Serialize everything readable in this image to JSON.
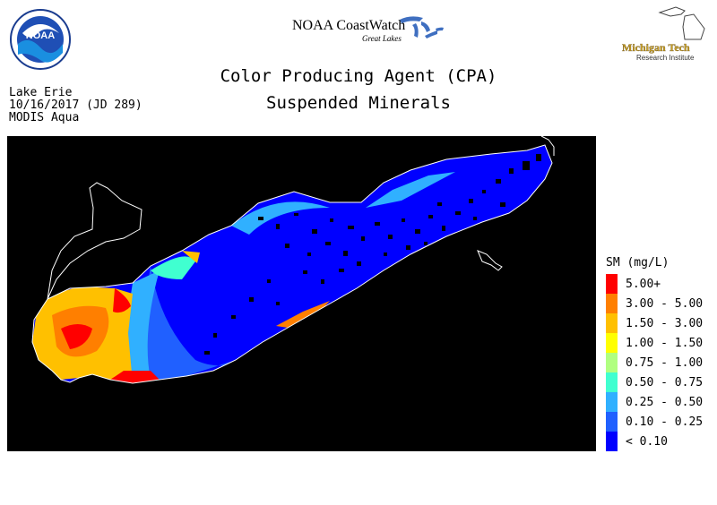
{
  "header": {
    "coastwatch_title": "NOAA CoastWatch",
    "coastwatch_subtitle": "Great Lakes",
    "noaa_logo_text": "NOAA",
    "mtu_name": "Michigan Tech",
    "mtu_subtitle": "Research Institute",
    "title_line1": "Color Producing Agent (CPA)",
    "title_line2": "Suspended Minerals"
  },
  "meta": {
    "lake": "Lake Erie",
    "date": "10/16/2017 (JD 289)",
    "sensor": "MODIS Aqua"
  },
  "legend": {
    "title": "SM (mg/L)",
    "items": [
      {
        "label": "5.00+",
        "color": "#ff0000"
      },
      {
        "label": "3.00 - 5.00",
        "color": "#ff7f00"
      },
      {
        "label": "1.50 - 3.00",
        "color": "#ffc000"
      },
      {
        "label": "1.00 - 1.50",
        "color": "#ffff00"
      },
      {
        "label": "0.75 - 1.00",
        "color": "#b0ff80"
      },
      {
        "label": "0.50 - 0.75",
        "color": "#40ffd0"
      },
      {
        "label": "0.25 - 0.50",
        "color": "#30b0ff"
      },
      {
        "label": "0.10 - 0.25",
        "color": "#2060ff"
      },
      {
        "label": "< 0.10",
        "color": "#0000ff"
      }
    ]
  },
  "map": {
    "background_color": "#000000",
    "shoreline_color": "#ffffff",
    "land_color": "#000000"
  }
}
